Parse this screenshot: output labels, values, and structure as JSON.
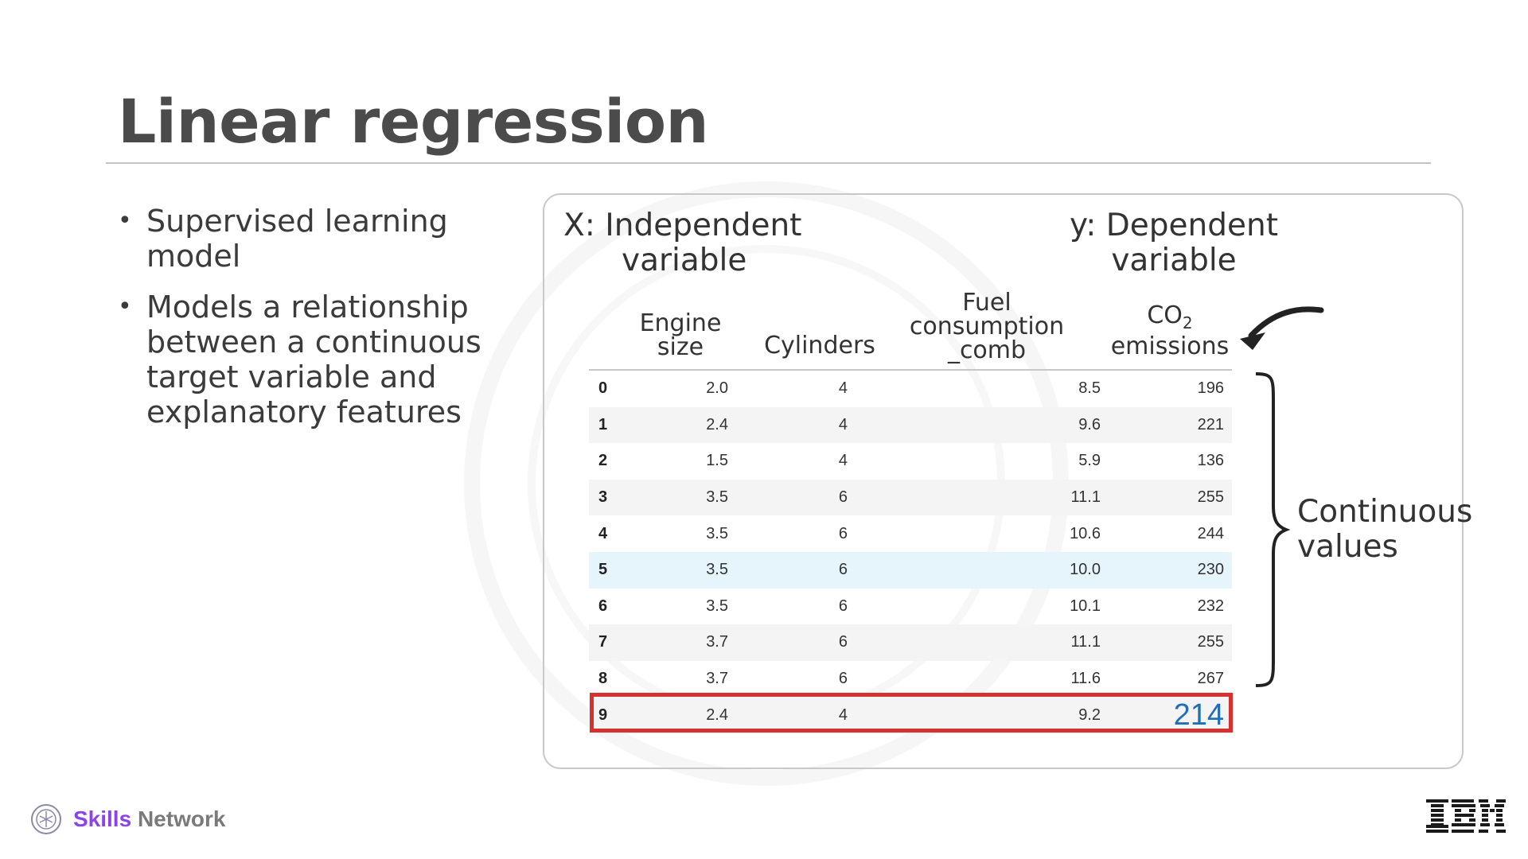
{
  "slide": {
    "title": "Linear regression",
    "bullets": [
      "Supervised learning model",
      "Models a relationship between a continuous target variable and explanatory features"
    ]
  },
  "figure": {
    "x_label_line1": "X: Independent",
    "x_label_line2": "variable",
    "y_label_line1": "y: Dependent",
    "y_label_line2": "variable",
    "columns": {
      "engine_size": [
        "Engine",
        "size"
      ],
      "cylinders": [
        "Cylinders"
      ],
      "fuel": [
        "Fuel",
        "consumption",
        "_comb"
      ],
      "co2_main": "CO",
      "co2_sub": "2",
      "co2_line2": "emissions"
    },
    "rows": [
      {
        "idx": "0",
        "engine": "2.0",
        "cyl": "4",
        "fuel": "8.5",
        "co2": "196"
      },
      {
        "idx": "1",
        "engine": "2.4",
        "cyl": "4",
        "fuel": "9.6",
        "co2": "221"
      },
      {
        "idx": "2",
        "engine": "1.5",
        "cyl": "4",
        "fuel": "5.9",
        "co2": "136"
      },
      {
        "idx": "3",
        "engine": "3.5",
        "cyl": "6",
        "fuel": "11.1",
        "co2": "255"
      },
      {
        "idx": "4",
        "engine": "3.5",
        "cyl": "6",
        "fuel": "10.6",
        "co2": "244"
      },
      {
        "idx": "5",
        "engine": "3.5",
        "cyl": "6",
        "fuel": "10.0",
        "co2": "230"
      },
      {
        "idx": "6",
        "engine": "3.5",
        "cyl": "6",
        "fuel": "10.1",
        "co2": "232"
      },
      {
        "idx": "7",
        "engine": "3.7",
        "cyl": "6",
        "fuel": "11.1",
        "co2": "255"
      },
      {
        "idx": "8",
        "engine": "3.7",
        "cyl": "6",
        "fuel": "11.6",
        "co2": "267"
      },
      {
        "idx": "9",
        "engine": "2.4",
        "cyl": "4",
        "fuel": "9.2",
        "co2": "214"
      }
    ],
    "highlight_row": "5",
    "continuous_line1": "Continuous",
    "continuous_line2": "values",
    "colors": {
      "highlight": "#e6f4fc",
      "prediction": "#1f6fb4",
      "box": "#d6312f"
    }
  },
  "footer": {
    "brand_skills": "Skills",
    "brand_network": "Network",
    "logo_icon": "skills-network-logo-icon",
    "ibm_logo": "IBM"
  }
}
